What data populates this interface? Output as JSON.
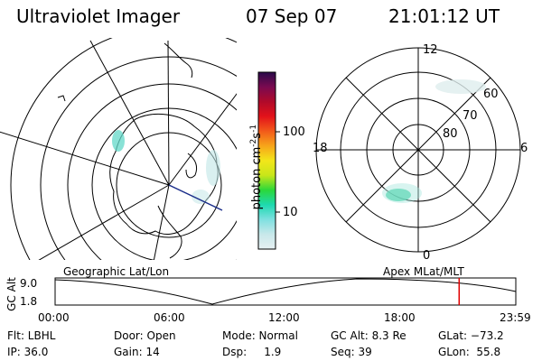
{
  "header": {
    "title": "Ultraviolet Imager",
    "date": "07 Sep 07",
    "time": "21:01:12 UT"
  },
  "colorbar": {
    "label": "photon cm",
    "label_sup1": "-2",
    "label_s": "s",
    "label_sup2": "-1",
    "ticks": [
      "100",
      "10"
    ]
  },
  "geo_map": {
    "label": "Geographic Lat/Lon"
  },
  "polar_map": {
    "label": "Apex MLat/MLT",
    "mlt_labels": {
      "top": "12",
      "left": "18",
      "right": "6",
      "bottom": "0"
    },
    "lat_labels": [
      "60",
      "70",
      "80"
    ]
  },
  "altitude_plot": {
    "ylabel": "GC Alt",
    "yticks": [
      "9.0",
      "1.8"
    ],
    "xticks": [
      "00:00",
      "06:00",
      "12:00",
      "18:00",
      "23:59"
    ],
    "current_time_fraction": 0.877
  },
  "status": {
    "filter": "Flt: LBHL",
    "door": "Door: Open",
    "mode": "Mode: Normal",
    "gc_alt": "GC Alt: 8.3 Re",
    "glat": "GLat: −73.2",
    "ip": "IP: 36.0",
    "gain": "Gain: 14",
    "dsp": "Dsp:     1.9",
    "seq": "Seq: 39",
    "glon": "GLon:  55.8"
  },
  "colors": {
    "colorbar": [
      "#e6f0f2",
      "#c8e8ea",
      "#7fe0e0",
      "#1ed9b0",
      "#2bd83a",
      "#c8e61a",
      "#f2e61a",
      "#f7a51a",
      "#f25a1a",
      "#e3121a",
      "#b00a2a",
      "#7a0a50",
      "#2a0a4a"
    ],
    "current_time_marker": "#e00000",
    "aurora": "#62d8c8"
  }
}
